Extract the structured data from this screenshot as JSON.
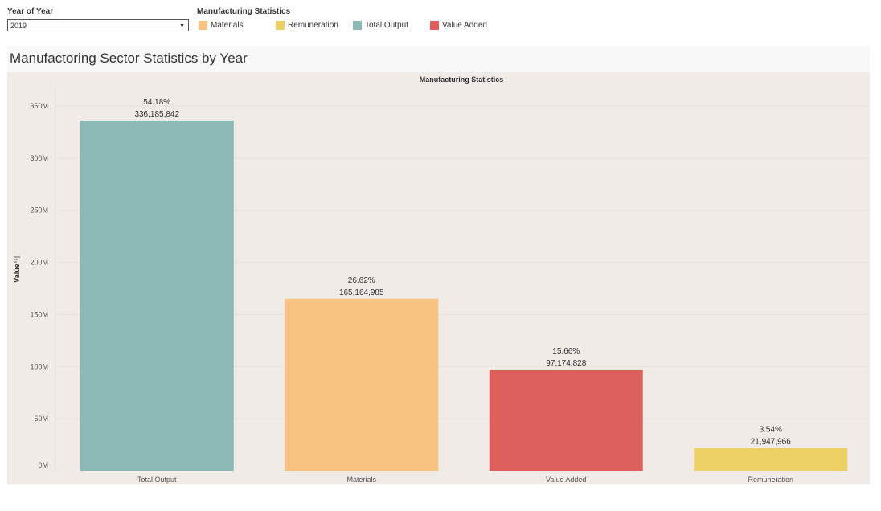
{
  "filter": {
    "label": "Year of Year",
    "selected": "2019"
  },
  "legend": {
    "title": "Manufacturing Statistics",
    "items": [
      {
        "label": "Materials",
        "color": "#f8c280"
      },
      {
        "label": "Remuneration",
        "color": "#ecd064"
      },
      {
        "label": "Total Output",
        "color": "#8bbab6"
      },
      {
        "label": "Value Added",
        "color": "#dc5f5c"
      }
    ]
  },
  "dashboard_title": "Manufactoring Sector Statistics by Year",
  "chart_data": {
    "type": "bar",
    "title": "Manufacturing Statistics",
    "ylabel": "Value",
    "xlabel": "",
    "ylim": [
      0,
      360000000
    ],
    "yticks": [
      {
        "value": 0,
        "label": "0M"
      },
      {
        "value": 50000000,
        "label": "50M"
      },
      {
        "value": 100000000,
        "label": "100M"
      },
      {
        "value": 150000000,
        "label": "150M"
      },
      {
        "value": 200000000,
        "label": "200M"
      },
      {
        "value": 250000000,
        "label": "250M"
      },
      {
        "value": 300000000,
        "label": "300M"
      },
      {
        "value": 350000000,
        "label": "350M"
      }
    ],
    "categories": [
      "Total Output",
      "Materials",
      "Value Added",
      "Remuneration"
    ],
    "values": [
      336185842,
      165164985,
      97174828,
      21947966
    ],
    "value_labels": [
      "336,185,842",
      "165,164,985",
      "97,174,828",
      "21,947,966"
    ],
    "percent_labels": [
      "54.18%",
      "26.62%",
      "15.66%",
      "3.54%"
    ],
    "colors": [
      "#8bbab6",
      "#f8c280",
      "#dc5f5c",
      "#ecd064"
    ],
    "grid": true
  }
}
